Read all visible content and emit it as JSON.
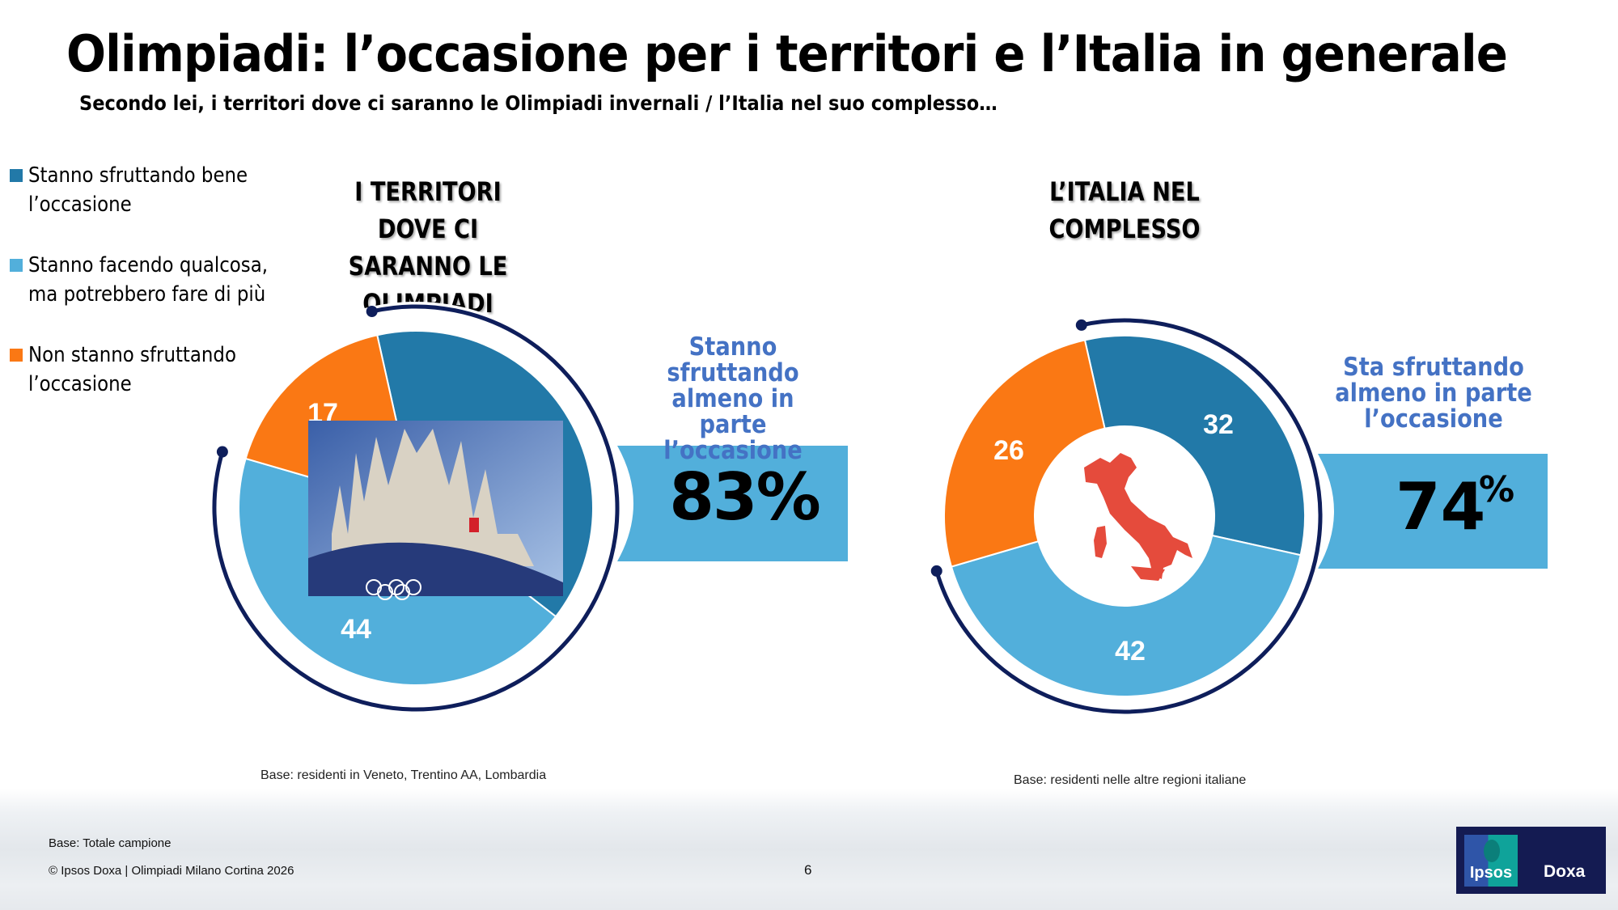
{
  "title": "Olimpiadi: l’occasione per i territori e l’Italia in generale",
  "subtitle": "Secondo lei, i territori dove ci saranno le Olimpiadi invernali / l’Italia nel suo complesso…",
  "colors": {
    "dark_blue": "#2279A8",
    "light_blue": "#52AFDB",
    "orange": "#FA7814",
    "ring": "#0E1E5B",
    "callout_text": "#4472C4",
    "callout_bar": "#52AFDB",
    "italy": "#E54B3C"
  },
  "legend": [
    {
      "label": "Stanno sfruttando bene l’occasione",
      "color": "#2279A8"
    },
    {
      "label": "Stanno facendo qualcosa, ma potrebbero fare di più",
      "color": "#52AFDB"
    },
    {
      "label": "Non stanno sfruttando l’occasione",
      "color": "#FA7814"
    }
  ],
  "chart_data": [
    {
      "type": "pie",
      "title": "I TERRITORI DOVE CI SARANNO LE OLIMPIADI",
      "categories": [
        "Stanno sfruttando bene l’occasione",
        "Stanno facendo qualcosa, ma potrebbero fare di più",
        "Non stanno sfruttando l’occasione"
      ],
      "values": [
        39,
        44,
        17
      ],
      "data_labels": [
        "",
        "44",
        "17"
      ],
      "callout": {
        "text": "Stanno sfruttando almeno in parte l’occasione",
        "value": "83%",
        "value_num": 83
      },
      "center_image": "milan-cathedral-olympics-photo",
      "base": "Base: residenti in Veneto, Trentino AA, Lombardia"
    },
    {
      "type": "donut",
      "title": "L’ITALIA NEL COMPLESSO",
      "categories": [
        "Stanno sfruttando bene l’occasione",
        "Stanno facendo qualcosa, ma potrebbero fare di più",
        "Non stanno sfruttando l’occasione"
      ],
      "values": [
        32,
        42,
        26
      ],
      "data_labels": [
        "32",
        "42",
        "26"
      ],
      "callout": {
        "text": "Sta sfruttando almeno in parte l’occasione",
        "value": "74",
        "unit": "%",
        "value_num": 74
      },
      "center_image": "italy-map",
      "base": "Base: residenti nelle altre regioni italiane"
    }
  ],
  "footer": {
    "base": "Base: Totale campione",
    "copyright": "© Ipsos Doxa | Olimpiadi Milano Cortina 2026",
    "page": "6"
  },
  "logo": {
    "ipsos": "Ipsos",
    "doxa": "Doxa"
  }
}
